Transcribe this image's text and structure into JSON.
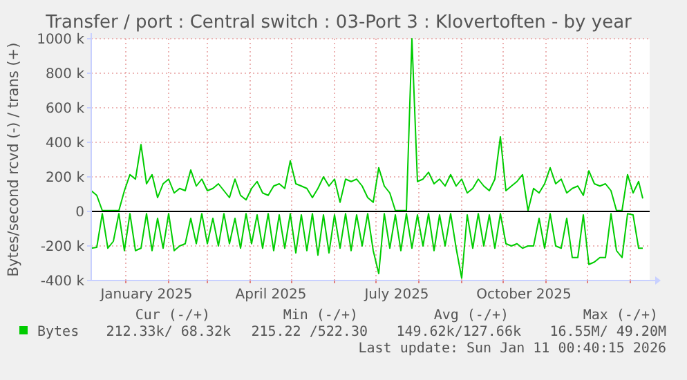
{
  "chart_data": {
    "type": "line",
    "title": "Transfer / port : Central switch : 03-Port 3 : Klovertoften - by year",
    "ylabel": "Bytes/second rcvd (-) / trans (+)",
    "x": [
      "2024-12-07",
      "2024-12-11",
      "2024-12-15",
      "2024-12-19",
      "2024-12-23",
      "2024-12-27",
      "2024-12-31",
      "2025-01-04",
      "2025-01-08",
      "2025-01-12",
      "2025-01-16",
      "2025-01-20",
      "2025-01-24",
      "2025-01-28",
      "2025-02-01",
      "2025-02-05",
      "2025-02-09",
      "2025-02-13",
      "2025-02-17",
      "2025-02-21",
      "2025-02-25",
      "2025-03-01",
      "2025-03-05",
      "2025-03-09",
      "2025-03-13",
      "2025-03-17",
      "2025-03-21",
      "2025-03-25",
      "2025-03-29",
      "2025-04-02",
      "2025-04-06",
      "2025-04-10",
      "2025-04-14",
      "2025-04-18",
      "2025-04-22",
      "2025-04-26",
      "2025-04-30",
      "2025-05-04",
      "2025-05-08",
      "2025-05-12",
      "2025-05-16",
      "2025-05-20",
      "2025-05-24",
      "2025-05-28",
      "2025-06-01",
      "2025-06-05",
      "2025-06-09",
      "2025-06-13",
      "2025-06-17",
      "2025-06-21",
      "2025-06-25",
      "2025-06-29",
      "2025-07-03",
      "2025-07-07",
      "2025-07-11",
      "2025-07-15",
      "2025-07-19",
      "2025-07-23",
      "2025-07-27",
      "2025-07-31",
      "2025-08-04",
      "2025-08-08",
      "2025-08-12",
      "2025-08-16",
      "2025-08-20",
      "2025-08-24",
      "2025-08-28",
      "2025-09-01",
      "2025-09-05",
      "2025-09-09",
      "2025-09-13",
      "2025-09-17",
      "2025-09-21",
      "2025-09-25",
      "2025-09-29",
      "2025-10-03",
      "2025-10-07",
      "2025-10-11",
      "2025-10-15",
      "2025-10-19",
      "2025-10-23",
      "2025-10-27",
      "2025-10-31",
      "2025-11-04",
      "2025-11-08",
      "2025-11-12",
      "2025-11-16",
      "2025-11-20",
      "2025-11-24",
      "2025-11-28",
      "2025-12-02",
      "2025-12-06",
      "2025-12-10",
      "2025-12-14",
      "2025-12-18",
      "2025-12-22",
      "2025-12-26",
      "2025-12-30",
      "2026-01-03",
      "2026-01-07",
      "2026-01-10"
    ],
    "series": [
      {
        "name": "Bytes",
        "color": "#00cc00",
        "values": [
          120,
          93,
          5,
          5,
          5,
          5,
          120,
          213,
          187,
          387,
          160,
          213,
          80,
          160,
          187,
          107,
          133,
          120,
          240,
          147,
          187,
          120,
          133,
          160,
          120,
          80,
          187,
          93,
          67,
          133,
          173,
          107,
          93,
          147,
          160,
          133,
          293,
          160,
          147,
          133,
          80,
          133,
          200,
          147,
          187,
          53,
          187,
          173,
          187,
          147,
          80,
          53,
          253,
          147,
          107,
          5,
          5,
          5,
          1000,
          173,
          187,
          227,
          160,
          187,
          147,
          213,
          147,
          187,
          107,
          133,
          187,
          147,
          120,
          187,
          432,
          120,
          147,
          173,
          213,
          5,
          133,
          107,
          160,
          253,
          160,
          187,
          107,
          133,
          147,
          93,
          235,
          160,
          147,
          160,
          120,
          5,
          5,
          213,
          107,
          173,
          75
        ]
      },
      {
        "color": "#00cc00",
        "values": [
          -213,
          -208,
          -13,
          -213,
          -173,
          -13,
          -227,
          -13,
          -227,
          -213,
          -13,
          -227,
          -40,
          -213,
          -13,
          -227,
          -200,
          -187,
          -40,
          -187,
          -13,
          -187,
          -40,
          -200,
          -13,
          -187,
          -40,
          -213,
          -13,
          -187,
          -20,
          -213,
          -13,
          -227,
          -20,
          -213,
          -13,
          -240,
          -20,
          -227,
          -13,
          -253,
          -20,
          -240,
          -20,
          -213,
          -13,
          -227,
          -20,
          -200,
          -13,
          -227,
          -360,
          -13,
          -213,
          -20,
          -227,
          -13,
          -213,
          -20,
          -200,
          -13,
          -227,
          -20,
          -200,
          -13,
          -213,
          -387,
          -20,
          -213,
          -13,
          -200,
          -20,
          -213,
          -13,
          -187,
          -200,
          -187,
          -213,
          -200,
          -200,
          -40,
          -213,
          -13,
          -200,
          -213,
          -40,
          -267,
          -267,
          -20,
          -307,
          -293,
          -267,
          -267,
          -13,
          -227,
          -267,
          -13,
          -20,
          -213,
          -213
        ]
      }
    ],
    "xlim": [
      "2024-12-07",
      "2026-01-11"
    ],
    "xticks": [
      {
        "value": "2025-01-01",
        "label": null
      },
      {
        "value": "2025-01-16",
        "label": "January 2025"
      },
      {
        "value": "2025-02-01",
        "label": null
      },
      {
        "value": "2025-03-01",
        "label": null
      },
      {
        "value": "2025-04-01",
        "label": null
      },
      {
        "value": "2025-04-16",
        "label": "April 2025"
      },
      {
        "value": "2025-05-01",
        "label": null
      },
      {
        "value": "2025-06-01",
        "label": null
      },
      {
        "value": "2025-07-01",
        "label": null
      },
      {
        "value": "2025-07-16",
        "label": "July 2025"
      },
      {
        "value": "2025-08-01",
        "label": null
      },
      {
        "value": "2025-09-01",
        "label": null
      },
      {
        "value": "2025-10-01",
        "label": null
      },
      {
        "value": "2025-10-16",
        "label": "October 2025"
      },
      {
        "value": "2025-11-01",
        "label": null
      },
      {
        "value": "2025-12-01",
        "label": null
      },
      {
        "value": "2026-01-01",
        "label": null
      }
    ],
    "ylim": [
      -400,
      1000
    ],
    "yticks": [
      {
        "value": -400,
        "label": "-400 k"
      },
      {
        "value": -200,
        "label": "-200 k"
      },
      0,
      {
        "value": 200,
        "label": "200 k"
      },
      {
        "value": 400,
        "label": "400 k"
      },
      {
        "value": 600,
        "label": "600 k"
      },
      {
        "value": 800,
        "label": "800 k"
      },
      {
        "value": 1000,
        "label": "1000 k"
      }
    ],
    "ref_lines": [
      {
        "axis": "y",
        "value": 0,
        "color": "#000000"
      }
    ],
    "grid": true,
    "legend": "bottom",
    "line_style": "solid",
    "annotations": [
      "Cur (-/+)",
      "Min (-/+)",
      "Avg (-/+)",
      "Max (-/+)",
      "212.33k/ 68.32k",
      "215.22 /522.30",
      "149.62k/127.66k",
      " 16.55M/ 49.20M",
      "Last update: Sun Jan 11 00:40:15 2026"
    ]
  }
}
